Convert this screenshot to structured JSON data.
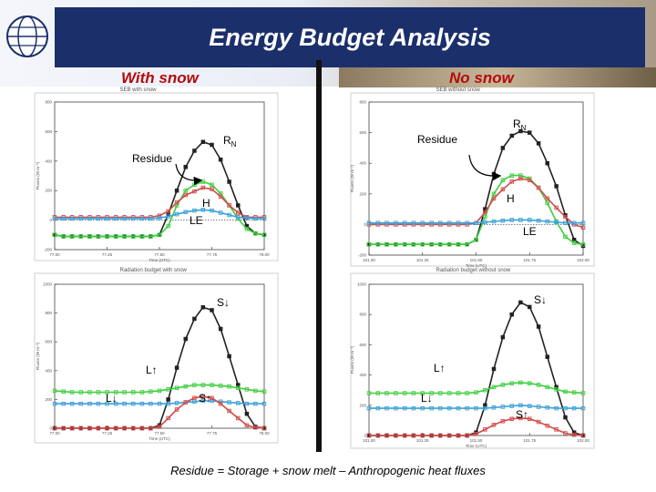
{
  "slide": {
    "title": "Energy Budget Analysis",
    "left_heading": "With snow",
    "right_heading": "No snow",
    "footer": "Residue = Storage + snow melt – Anthropogenic heat fluxes"
  },
  "colors": {
    "banner_blue": "#1b2f6b",
    "heading_red": "#b50a0a",
    "rn": "#222222",
    "h": "#d24b4b",
    "residue": "#3ecf3e",
    "le": "#3ba0d8",
    "lup": "#3ecf3e",
    "ldown": "#3ba0d8",
    "sup": "#d24b4b",
    "sdown": "#222222"
  },
  "chart_data": [
    {
      "id": "seb-with-snow",
      "type": "line",
      "title": "SEB with snow",
      "xlabel": "Time (UTC)",
      "ylabel": "Fluxes (W m⁻²)",
      "xlim": [
        77.0,
        78.0
      ],
      "ylim": [
        -200,
        800
      ],
      "x_ticks": [
        "77.00",
        "77.25",
        "77.50",
        "77.75",
        "78.00"
      ],
      "y_ticks": [
        "-200",
        "0",
        "200",
        "400",
        "600",
        "800"
      ],
      "x": [
        77.0,
        77.042,
        77.083,
        77.125,
        77.167,
        77.208,
        77.25,
        77.292,
        77.333,
        77.375,
        77.417,
        77.458,
        77.5,
        77.542,
        77.583,
        77.625,
        77.667,
        77.708,
        77.75,
        77.792,
        77.833,
        77.875,
        77.917,
        77.958,
        78.0
      ],
      "series": [
        {
          "name": "RN",
          "key": "rn",
          "values": [
            -100,
            -110,
            -110,
            -110,
            -110,
            -110,
            -110,
            -110,
            -110,
            -110,
            -110,
            -110,
            -100,
            40,
            200,
            360,
            470,
            530,
            510,
            410,
            260,
            100,
            -40,
            -90,
            -100
          ]
        },
        {
          "name": "Residue",
          "key": "residue",
          "values": [
            -100,
            -110,
            -110,
            -110,
            -110,
            -110,
            -110,
            -110,
            -110,
            -110,
            -110,
            -110,
            -100,
            -40,
            100,
            200,
            240,
            260,
            240,
            180,
            100,
            10,
            -60,
            -90,
            -100
          ]
        },
        {
          "name": "H",
          "key": "h",
          "values": [
            20,
            20,
            20,
            20,
            20,
            20,
            20,
            20,
            20,
            20,
            20,
            20,
            30,
            60,
            120,
            170,
            195,
            220,
            210,
            160,
            100,
            50,
            20,
            20,
            20
          ]
        },
        {
          "name": "LE",
          "key": "le",
          "values": [
            10,
            10,
            10,
            10,
            10,
            10,
            10,
            10,
            10,
            10,
            10,
            10,
            15,
            25,
            40,
            55,
            65,
            70,
            65,
            50,
            35,
            20,
            15,
            10,
            10
          ]
        }
      ],
      "annotations": [
        "RN",
        "Residue",
        "H",
        "LE"
      ]
    },
    {
      "id": "seb-without-snow",
      "type": "line",
      "title": "SEB without snow",
      "xlabel": "Time (UTC)",
      "ylabel": "Fluxes (W m⁻²)",
      "xlim": [
        101.0,
        102.0
      ],
      "ylim": [
        -200,
        800
      ],
      "x_ticks": [
        "101.00",
        "101.25",
        "101.50",
        "101.75",
        "102.00"
      ],
      "y_ticks": [
        "-200",
        "0",
        "200",
        "400",
        "600",
        "800"
      ],
      "x": [
        101.0,
        101.042,
        101.083,
        101.125,
        101.167,
        101.208,
        101.25,
        101.292,
        101.333,
        101.375,
        101.417,
        101.458,
        101.5,
        101.542,
        101.583,
        101.625,
        101.667,
        101.708,
        101.75,
        101.792,
        101.833,
        101.875,
        101.917,
        101.958,
        102.0
      ],
      "series": [
        {
          "name": "RN",
          "key": "rn",
          "values": [
            -130,
            -130,
            -130,
            -130,
            -130,
            -130,
            -130,
            -130,
            -130,
            -130,
            -130,
            -130,
            -100,
            100,
            330,
            500,
            580,
            610,
            600,
            530,
            400,
            250,
            60,
            -100,
            -140
          ]
        },
        {
          "name": "Residue",
          "key": "residue",
          "values": [
            -130,
            -130,
            -130,
            -130,
            -130,
            -130,
            -130,
            -130,
            -130,
            -130,
            -130,
            -130,
            -100,
            50,
            200,
            290,
            320,
            320,
            300,
            240,
            140,
            20,
            -80,
            -120,
            -130
          ]
        },
        {
          "name": "H",
          "key": "h",
          "values": [
            0,
            0,
            0,
            0,
            0,
            0,
            0,
            0,
            0,
            0,
            0,
            0,
            10,
            80,
            170,
            230,
            280,
            300,
            290,
            240,
            170,
            110,
            50,
            0,
            -20
          ]
        },
        {
          "name": "LE",
          "key": "le",
          "values": [
            10,
            10,
            10,
            10,
            10,
            10,
            10,
            10,
            10,
            10,
            10,
            10,
            10,
            15,
            20,
            25,
            30,
            30,
            30,
            25,
            20,
            15,
            10,
            10,
            10
          ]
        }
      ],
      "annotations": [
        "RN",
        "Residue",
        "H",
        "LE"
      ]
    },
    {
      "id": "radiation-with-snow",
      "type": "line",
      "title": "Radiation budget with snow",
      "xlabel": "Time (UTC)",
      "ylabel": "Fluxes (W m⁻²)",
      "xlim": [
        77.0,
        78.0
      ],
      "ylim": [
        0,
        1000
      ],
      "x_ticks": [
        "77.00",
        "77.25",
        "77.50",
        "77.75",
        "78.00"
      ],
      "y_ticks": [
        "0",
        "200",
        "400",
        "600",
        "800",
        "1000"
      ],
      "x": [
        77.0,
        77.042,
        77.083,
        77.125,
        77.167,
        77.208,
        77.25,
        77.292,
        77.333,
        77.375,
        77.417,
        77.458,
        77.5,
        77.542,
        77.583,
        77.625,
        77.667,
        77.708,
        77.75,
        77.792,
        77.833,
        77.875,
        77.917,
        77.958,
        78.0
      ],
      "series": [
        {
          "name": "S↓",
          "key": "sdown",
          "values": [
            0,
            0,
            0,
            0,
            0,
            0,
            0,
            0,
            0,
            0,
            0,
            0,
            20,
            200,
            420,
            620,
            760,
            840,
            820,
            690,
            500,
            300,
            100,
            10,
            0
          ]
        },
        {
          "name": "L↑",
          "key": "lup",
          "values": [
            260,
            255,
            250,
            250,
            250,
            250,
            250,
            250,
            250,
            250,
            250,
            255,
            260,
            270,
            280,
            290,
            300,
            300,
            300,
            295,
            290,
            280,
            270,
            260,
            255
          ]
        },
        {
          "name": "L↓",
          "key": "ldown",
          "values": [
            170,
            170,
            170,
            170,
            170,
            170,
            170,
            170,
            170,
            170,
            170,
            170,
            170,
            170,
            175,
            180,
            185,
            190,
            190,
            185,
            180,
            175,
            170,
            170,
            170
          ]
        },
        {
          "name": "S↑",
          "key": "sup",
          "values": [
            0,
            0,
            0,
            0,
            0,
            0,
            0,
            0,
            0,
            0,
            0,
            0,
            10,
            70,
            130,
            180,
            210,
            220,
            210,
            170,
            120,
            70,
            20,
            5,
            0
          ]
        }
      ],
      "annotations": [
        "S↓",
        "L↑",
        "L↓",
        "S↑"
      ]
    },
    {
      "id": "radiation-without-snow",
      "type": "line",
      "title": "Radiation budget without snow",
      "xlabel": "Time (UTC)",
      "ylabel": "Fluxes (W m⁻²)",
      "xlim": [
        101.0,
        102.0
      ],
      "ylim": [
        0,
        1000
      ],
      "x_ticks": [
        "101.00",
        "101.25",
        "101.50",
        "101.75",
        "102.00"
      ],
      "y_ticks": [
        "0",
        "200",
        "400",
        "600",
        "800",
        "1000"
      ],
      "x": [
        101.0,
        101.042,
        101.083,
        101.125,
        101.167,
        101.208,
        101.25,
        101.292,
        101.333,
        101.375,
        101.417,
        101.458,
        101.5,
        101.542,
        101.583,
        101.625,
        101.667,
        101.708,
        101.75,
        101.792,
        101.833,
        101.875,
        101.917,
        101.958,
        102.0
      ],
      "series": [
        {
          "name": "S↓",
          "key": "sdown",
          "values": [
            0,
            0,
            0,
            0,
            0,
            0,
            0,
            0,
            0,
            0,
            0,
            0,
            20,
            200,
            440,
            650,
            800,
            880,
            850,
            720,
            520,
            320,
            120,
            20,
            0
          ]
        },
        {
          "name": "L↑",
          "key": "lup",
          "values": [
            280,
            280,
            280,
            280,
            280,
            280,
            280,
            280,
            280,
            280,
            280,
            280,
            285,
            300,
            320,
            335,
            345,
            350,
            345,
            335,
            320,
            305,
            290,
            285,
            280
          ]
        },
        {
          "name": "L↓",
          "key": "ldown",
          "values": [
            180,
            180,
            180,
            180,
            180,
            180,
            180,
            180,
            180,
            180,
            180,
            180,
            180,
            180,
            185,
            190,
            195,
            200,
            195,
            190,
            185,
            180,
            180,
            180,
            180
          ]
        },
        {
          "name": "S↑",
          "key": "sup",
          "values": [
            0,
            0,
            0,
            0,
            0,
            0,
            0,
            0,
            0,
            0,
            0,
            0,
            10,
            40,
            70,
            95,
            110,
            115,
            110,
            90,
            65,
            40,
            15,
            5,
            0
          ]
        }
      ],
      "annotations": [
        "S↓",
        "L↑",
        "L↓",
        "S↑"
      ]
    }
  ]
}
